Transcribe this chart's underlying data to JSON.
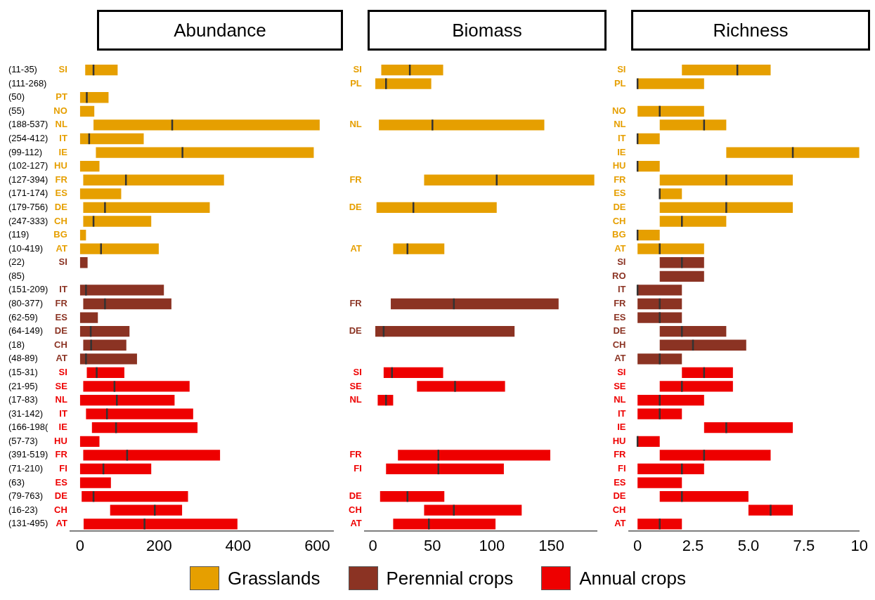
{
  "chart_data": [
    {
      "type": "box",
      "orientation": "horizontal",
      "title": "Abundance",
      "legend": "bottom",
      "xlim": [
        -25,
        640
      ],
      "xticks": [
        0,
        200,
        400,
        600
      ],
      "categories": [
        "SI",
        null,
        "PT",
        "NO",
        "NL",
        "IT",
        "IE",
        "HU",
        "FR",
        "ES",
        "DE",
        "CH",
        "BG",
        "AT",
        "SI",
        null,
        "IT",
        "FR",
        "ES",
        "DE",
        "CH",
        "AT",
        "SI",
        "SE",
        "NL",
        "IT",
        "IE",
        "HU",
        "FR",
        "FI",
        "ES",
        "DE",
        "CH",
        "AT"
      ],
      "annotations": [
        "(11-35)",
        "(111-268)",
        "(50)",
        "(55)",
        "(188-537)",
        "(254-412)",
        "(99-112)",
        "(102-127)",
        "(127-394)",
        "(171-174)",
        "(179-756)",
        "(247-333)",
        "(119)",
        "(10-419)",
        "(22)",
        "(85)",
        "(151-209)",
        "(80-377)",
        "(62-59)",
        "(64-149)",
        "(18)",
        "(48-89)",
        "(15-31)",
        "(21-95)",
        "(17-83)",
        "(31-142)",
        "(166-198(",
        "(57-73)",
        "(391-519)",
        "(71-210)",
        "(63)",
        "(79-763)",
        "(16-23)",
        "(131-495)"
      ],
      "series": [
        {
          "name": "Grasslands",
          "color": "#e69f00",
          "boxes": [
            {
              "low": 13,
              "q1": 13,
              "median": 34,
              "q3": 95,
              "high": 95
            },
            null,
            {
              "low": 0,
              "q1": 0,
              "median": 17,
              "q3": 72,
              "high": 72
            },
            {
              "low": 0,
              "q1": 0,
              "q3": 36,
              "high": 36
            },
            {
              "low": 34,
              "q1": 34,
              "median": 233,
              "q3": 606,
              "high": 606
            },
            {
              "low": 0,
              "q1": 0,
              "median": 23,
              "q3": 161,
              "high": 161
            },
            {
              "low": 40,
              "q1": 40,
              "median": 259,
              "q3": 591,
              "high": 591
            },
            {
              "low": 0,
              "q1": 0,
              "q3": 49,
              "high": 49
            },
            {
              "low": 8,
              "q1": 8,
              "median": 116,
              "q3": 364,
              "high": 364
            },
            {
              "low": 0,
              "q1": 0,
              "q3": 104,
              "high": 104
            },
            {
              "low": 8,
              "q1": 8,
              "median": 63,
              "q3": 328,
              "high": 328
            },
            {
              "low": 8,
              "q1": 8,
              "median": 34,
              "q3": 180,
              "high": 180
            },
            {
              "low": 0,
              "q1": 0,
              "q3": 15,
              "high": 15
            },
            {
              "low": 0,
              "q1": 0,
              "median": 53,
              "q3": 199,
              "high": 199
            },
            null,
            null,
            null,
            null,
            null,
            null,
            null,
            null,
            null,
            null,
            null,
            null,
            null,
            null,
            null,
            null,
            null,
            null,
            null,
            null
          ]
        },
        {
          "name": "Perennial crops",
          "color": "#8b3323",
          "boxes": [
            null,
            null,
            null,
            null,
            null,
            null,
            null,
            null,
            null,
            null,
            null,
            null,
            null,
            null,
            {
              "low": 0,
              "q1": 0,
              "q3": 19,
              "high": 19
            },
            null,
            {
              "low": 0,
              "q1": 0,
              "median": 15,
              "q3": 212,
              "high": 212
            },
            {
              "low": 8,
              "q1": 8,
              "median": 63,
              "q3": 231,
              "high": 231
            },
            {
              "low": 0,
              "q1": 0,
              "q3": 45,
              "high": 45
            },
            {
              "low": 0,
              "q1": 0,
              "median": 27,
              "q3": 125,
              "high": 125
            },
            {
              "low": 8,
              "q1": 8,
              "median": 28,
              "q3": 117,
              "high": 117
            },
            {
              "low": 0,
              "q1": 0,
              "median": 15,
              "q3": 144,
              "high": 144
            },
            null,
            null,
            null,
            null,
            null,
            null,
            null,
            null,
            null,
            null,
            null,
            null
          ]
        },
        {
          "name": "Annual crops",
          "color": "#ee0000",
          "boxes": [
            null,
            null,
            null,
            null,
            null,
            null,
            null,
            null,
            null,
            null,
            null,
            null,
            null,
            null,
            null,
            null,
            null,
            null,
            null,
            null,
            null,
            null,
            {
              "low": 17,
              "q1": 17,
              "median": 42,
              "q3": 112,
              "high": 112
            },
            {
              "low": 8,
              "q1": 8,
              "median": 87,
              "q3": 277,
              "high": 277
            },
            {
              "low": 0,
              "q1": 0,
              "median": 93,
              "q3": 239,
              "high": 239
            },
            {
              "low": 15,
              "q1": 15,
              "median": 68,
              "q3": 286,
              "high": 286
            },
            {
              "low": 30,
              "q1": 30,
              "median": 91,
              "q3": 297,
              "high": 297
            },
            {
              "low": 0,
              "q1": 0,
              "q3": 49,
              "high": 49
            },
            {
              "low": 8,
              "q1": 8,
              "median": 119,
              "q3": 354,
              "high": 354
            },
            {
              "low": 0,
              "q1": 0,
              "median": 59,
              "q3": 180,
              "high": 180
            },
            {
              "low": 0,
              "q1": 0,
              "q3": 78,
              "high": 78
            },
            {
              "low": 4,
              "q1": 4,
              "median": 34,
              "q3": 273,
              "high": 273
            },
            {
              "low": 76,
              "q1": 76,
              "median": 189,
              "q3": 258,
              "high": 258
            },
            {
              "low": 9,
              "q1": 9,
              "median": 163,
              "q3": 398,
              "high": 398
            }
          ]
        }
      ]
    },
    {
      "type": "box",
      "orientation": "horizontal",
      "title": "Biomass",
      "xlim": [
        -7,
        188
      ],
      "xticks": [
        0,
        50,
        100,
        150
      ],
      "categories": [
        "SI",
        "PL",
        null,
        null,
        "NL",
        null,
        null,
        null,
        "FR",
        null,
        "DE",
        null,
        null,
        "AT",
        null,
        null,
        null,
        "FR",
        null,
        "DE",
        null,
        null,
        "SI",
        "SE",
        "NL",
        null,
        null,
        null,
        "FR",
        "FI",
        null,
        "DE",
        "CH",
        "AT"
      ],
      "series": [
        {
          "color": "#e69f00",
          "boxes": [
            {
              "low": 7,
              "q1": 7,
              "median": 31,
              "q3": 59,
              "high": 59
            },
            {
              "low": 2,
              "q1": 2,
              "median": 11,
              "q3": 49,
              "high": 49
            },
            null,
            null,
            {
              "low": 5,
              "q1": 5,
              "median": 50,
              "q3": 144,
              "high": 144
            },
            null,
            null,
            null,
            {
              "low": 43,
              "q1": 43,
              "median": 104,
              "q3": 186,
              "high": 186
            },
            null,
            {
              "low": 3,
              "q1": 3,
              "median": 34,
              "q3": 104,
              "high": 104
            },
            null,
            null,
            {
              "low": 17,
              "q1": 17,
              "median": 29,
              "q3": 60,
              "high": 60
            },
            null,
            null,
            null,
            null,
            null,
            null,
            null,
            null,
            null,
            null,
            null,
            null,
            null,
            null,
            null,
            null,
            null,
            null,
            null,
            null
          ]
        },
        {
          "color": "#8b3323",
          "boxes": [
            null,
            null,
            null,
            null,
            null,
            null,
            null,
            null,
            null,
            null,
            null,
            null,
            null,
            null,
            null,
            null,
            null,
            {
              "low": 15,
              "q1": 15,
              "median": 68,
              "q3": 156,
              "high": 156
            },
            null,
            {
              "low": 2,
              "q1": 2,
              "median": 9,
              "q3": 119,
              "high": 119
            },
            null,
            null,
            null,
            null,
            null,
            null,
            null,
            null,
            null,
            null,
            null,
            null,
            null,
            null
          ]
        },
        {
          "color": "#ee0000",
          "boxes": [
            null,
            null,
            null,
            null,
            null,
            null,
            null,
            null,
            null,
            null,
            null,
            null,
            null,
            null,
            null,
            null,
            null,
            null,
            null,
            null,
            null,
            null,
            {
              "low": 9,
              "q1": 9,
              "median": 16,
              "q3": 59,
              "high": 59
            },
            {
              "low": 37,
              "q1": 37,
              "median": 69,
              "q3": 111,
              "high": 111
            },
            {
              "low": 4,
              "q1": 4,
              "median": 11,
              "q3": 17,
              "high": 17
            },
            null,
            null,
            null,
            {
              "low": 21,
              "q1": 21,
              "median": 55,
              "q3": 149,
              "high": 149
            },
            {
              "low": 11,
              "q1": 11,
              "median": 55,
              "q3": 110,
              "high": 110
            },
            null,
            {
              "low": 6,
              "q1": 6,
              "median": 29,
              "q3": 60,
              "high": 60
            },
            {
              "low": 43,
              "q1": 43,
              "median": 68,
              "q3": 125,
              "high": 125
            },
            {
              "low": 17,
              "q1": 17,
              "median": 47,
              "q3": 103,
              "high": 103
            }
          ]
        }
      ]
    },
    {
      "type": "box",
      "orientation": "horizontal",
      "title": "Richness",
      "xlim": [
        -0.4,
        10
      ],
      "xticks": [
        0,
        {
          "value": 2.5,
          "label": "2.5"
        },
        {
          "value": 5,
          "label": "5.0"
        },
        {
          "value": 7.5,
          "label": "7.5"
        },
        10
      ],
      "categories": [
        "SI",
        "PL",
        null,
        "NO",
        "NL",
        "IT",
        "IE",
        "HU",
        "FR",
        "ES",
        "DE",
        "CH",
        "BG",
        "AT",
        "SI",
        "RO",
        "IT",
        "FR",
        "ES",
        "DE",
        "CH",
        "AT",
        "SI",
        "SE",
        "NL",
        "IT",
        "IE",
        "HU",
        "FR",
        "FI",
        "ES",
        "DE",
        "CH",
        "AT"
      ],
      "series": [
        {
          "color": "#e69f00",
          "boxes": [
            {
              "low": 2,
              "q1": 2,
              "median": 4.5,
              "q3": 6,
              "high": 6
            },
            {
              "low": 0,
              "q1": 0,
              "median": 0,
              "q3": 3,
              "high": 3
            },
            null,
            {
              "low": 0,
              "q1": 0,
              "median": 1,
              "q3": 3,
              "high": 3
            },
            {
              "low": 1,
              "q1": 1,
              "median": 3,
              "q3": 4,
              "high": 4
            },
            {
              "low": 0,
              "q1": 0,
              "median": 0,
              "q3": 1,
              "high": 1
            },
            {
              "low": 4,
              "q1": 4,
              "median": 7,
              "q3": 10,
              "high": 10
            },
            {
              "low": 0,
              "q1": 0,
              "median": 0,
              "q3": 1,
              "high": 1
            },
            {
              "low": 1,
              "q1": 1,
              "median": 4,
              "q3": 7,
              "high": 7
            },
            {
              "low": 1,
              "q1": 1,
              "median": 1,
              "q3": 2,
              "high": 2
            },
            {
              "low": 1,
              "q1": 1,
              "median": 4,
              "q3": 7,
              "high": 7
            },
            {
              "low": 1,
              "q1": 1,
              "median": 2,
              "q3": 4,
              "high": 4
            },
            {
              "low": 0,
              "q1": 0,
              "median": 0,
              "q3": 1,
              "high": 1
            },
            {
              "low": 0,
              "q1": 0,
              "median": 1,
              "q3": 3,
              "high": 3
            },
            null,
            null,
            null,
            null,
            null,
            null,
            null,
            null,
            null,
            null,
            null,
            null,
            null,
            null,
            null,
            null,
            null,
            null,
            null,
            null
          ]
        },
        {
          "color": "#8b3323",
          "boxes": [
            null,
            null,
            null,
            null,
            null,
            null,
            null,
            null,
            null,
            null,
            null,
            null,
            null,
            null,
            {
              "low": 1,
              "q1": 1,
              "median": 2,
              "q3": 3,
              "high": 3
            },
            {
              "low": 1,
              "q1": 1,
              "q3": 3,
              "high": 3
            },
            {
              "low": 0,
              "q1": 0,
              "median": 0,
              "q3": 2,
              "high": 2
            },
            {
              "low": 0,
              "q1": 0,
              "median": 1,
              "q3": 2,
              "high": 2
            },
            {
              "low": 0,
              "q1": 0,
              "median": 1,
              "q3": 2,
              "high": 2
            },
            {
              "low": 1,
              "q1": 1,
              "median": 2,
              "q3": 4,
              "high": 4
            },
            {
              "low": 1,
              "q1": 1,
              "median": 2.5,
              "q3": 4.9,
              "high": 4.9
            },
            {
              "low": 0,
              "q1": 0,
              "median": 1,
              "q3": 2,
              "high": 2
            },
            null,
            null,
            null,
            null,
            null,
            null,
            null,
            null,
            null,
            null,
            null,
            null
          ]
        },
        {
          "color": "#ee0000",
          "boxes": [
            null,
            null,
            null,
            null,
            null,
            null,
            null,
            null,
            null,
            null,
            null,
            null,
            null,
            null,
            null,
            null,
            null,
            null,
            null,
            null,
            null,
            null,
            {
              "low": 2,
              "q1": 2,
              "median": 3,
              "q3": 4.3,
              "high": 4.3
            },
            {
              "low": 1,
              "q1": 1,
              "median": 2,
              "q3": 4.3,
              "high": 4.3
            },
            {
              "low": 0,
              "q1": 0,
              "median": 1,
              "q3": 3,
              "high": 3
            },
            {
              "low": 0,
              "q1": 0,
              "median": 1,
              "q3": 2,
              "high": 2
            },
            {
              "low": 3,
              "q1": 3,
              "median": 4,
              "q3": 7,
              "high": 7
            },
            {
              "low": 0,
              "q1": 0,
              "median": 0,
              "q3": 1,
              "high": 1
            },
            {
              "low": 1,
              "q1": 1,
              "median": 3,
              "q3": 6,
              "high": 6
            },
            {
              "low": 0,
              "q1": 0,
              "median": 2,
              "q3": 3,
              "high": 3
            },
            {
              "low": 0,
              "q1": 0,
              "q3": 2,
              "high": 2
            },
            {
              "low": 1,
              "q1": 1,
              "median": 2,
              "q3": 5,
              "high": 5
            },
            {
              "low": 5,
              "q1": 5,
              "median": 6,
              "q3": 7,
              "high": 7
            },
            {
              "low": 0,
              "q1": 0,
              "median": 1,
              "q3": 2,
              "high": 2
            }
          ]
        }
      ]
    }
  ]
}
